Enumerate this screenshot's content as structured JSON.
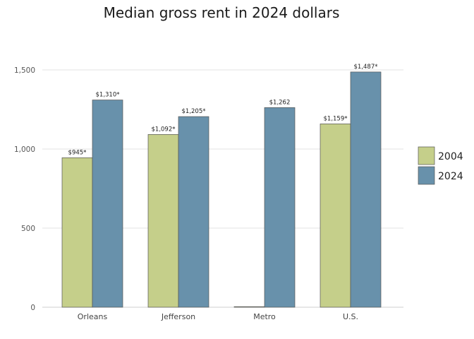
{
  "chart_data": {
    "type": "bar",
    "title": "Median gross rent in 2024 dollars",
    "xlabel": "",
    "ylabel": "",
    "ylim": [
      0,
      1600
    ],
    "yticks": [
      0,
      500,
      1000,
      1500
    ],
    "ytick_labels": [
      "0",
      "500",
      "1,000",
      "1,500"
    ],
    "grid": true,
    "legend_position": "right",
    "categories": [
      "Orleans",
      "Jefferson",
      "Metro",
      "U.S."
    ],
    "series": [
      {
        "name": "2004",
        "color": "#c5cf8a",
        "values": [
          945,
          1092,
          0,
          1159
        ],
        "labels": [
          "$945*",
          "$1,092*",
          "",
          "$1,159*"
        ]
      },
      {
        "name": "2024",
        "color": "#6891ab",
        "values": [
          1310,
          1205,
          1262,
          1487
        ],
        "labels": [
          "$1,310*",
          "$1,205*",
          "$1,262",
          "$1,487*"
        ]
      }
    ]
  }
}
